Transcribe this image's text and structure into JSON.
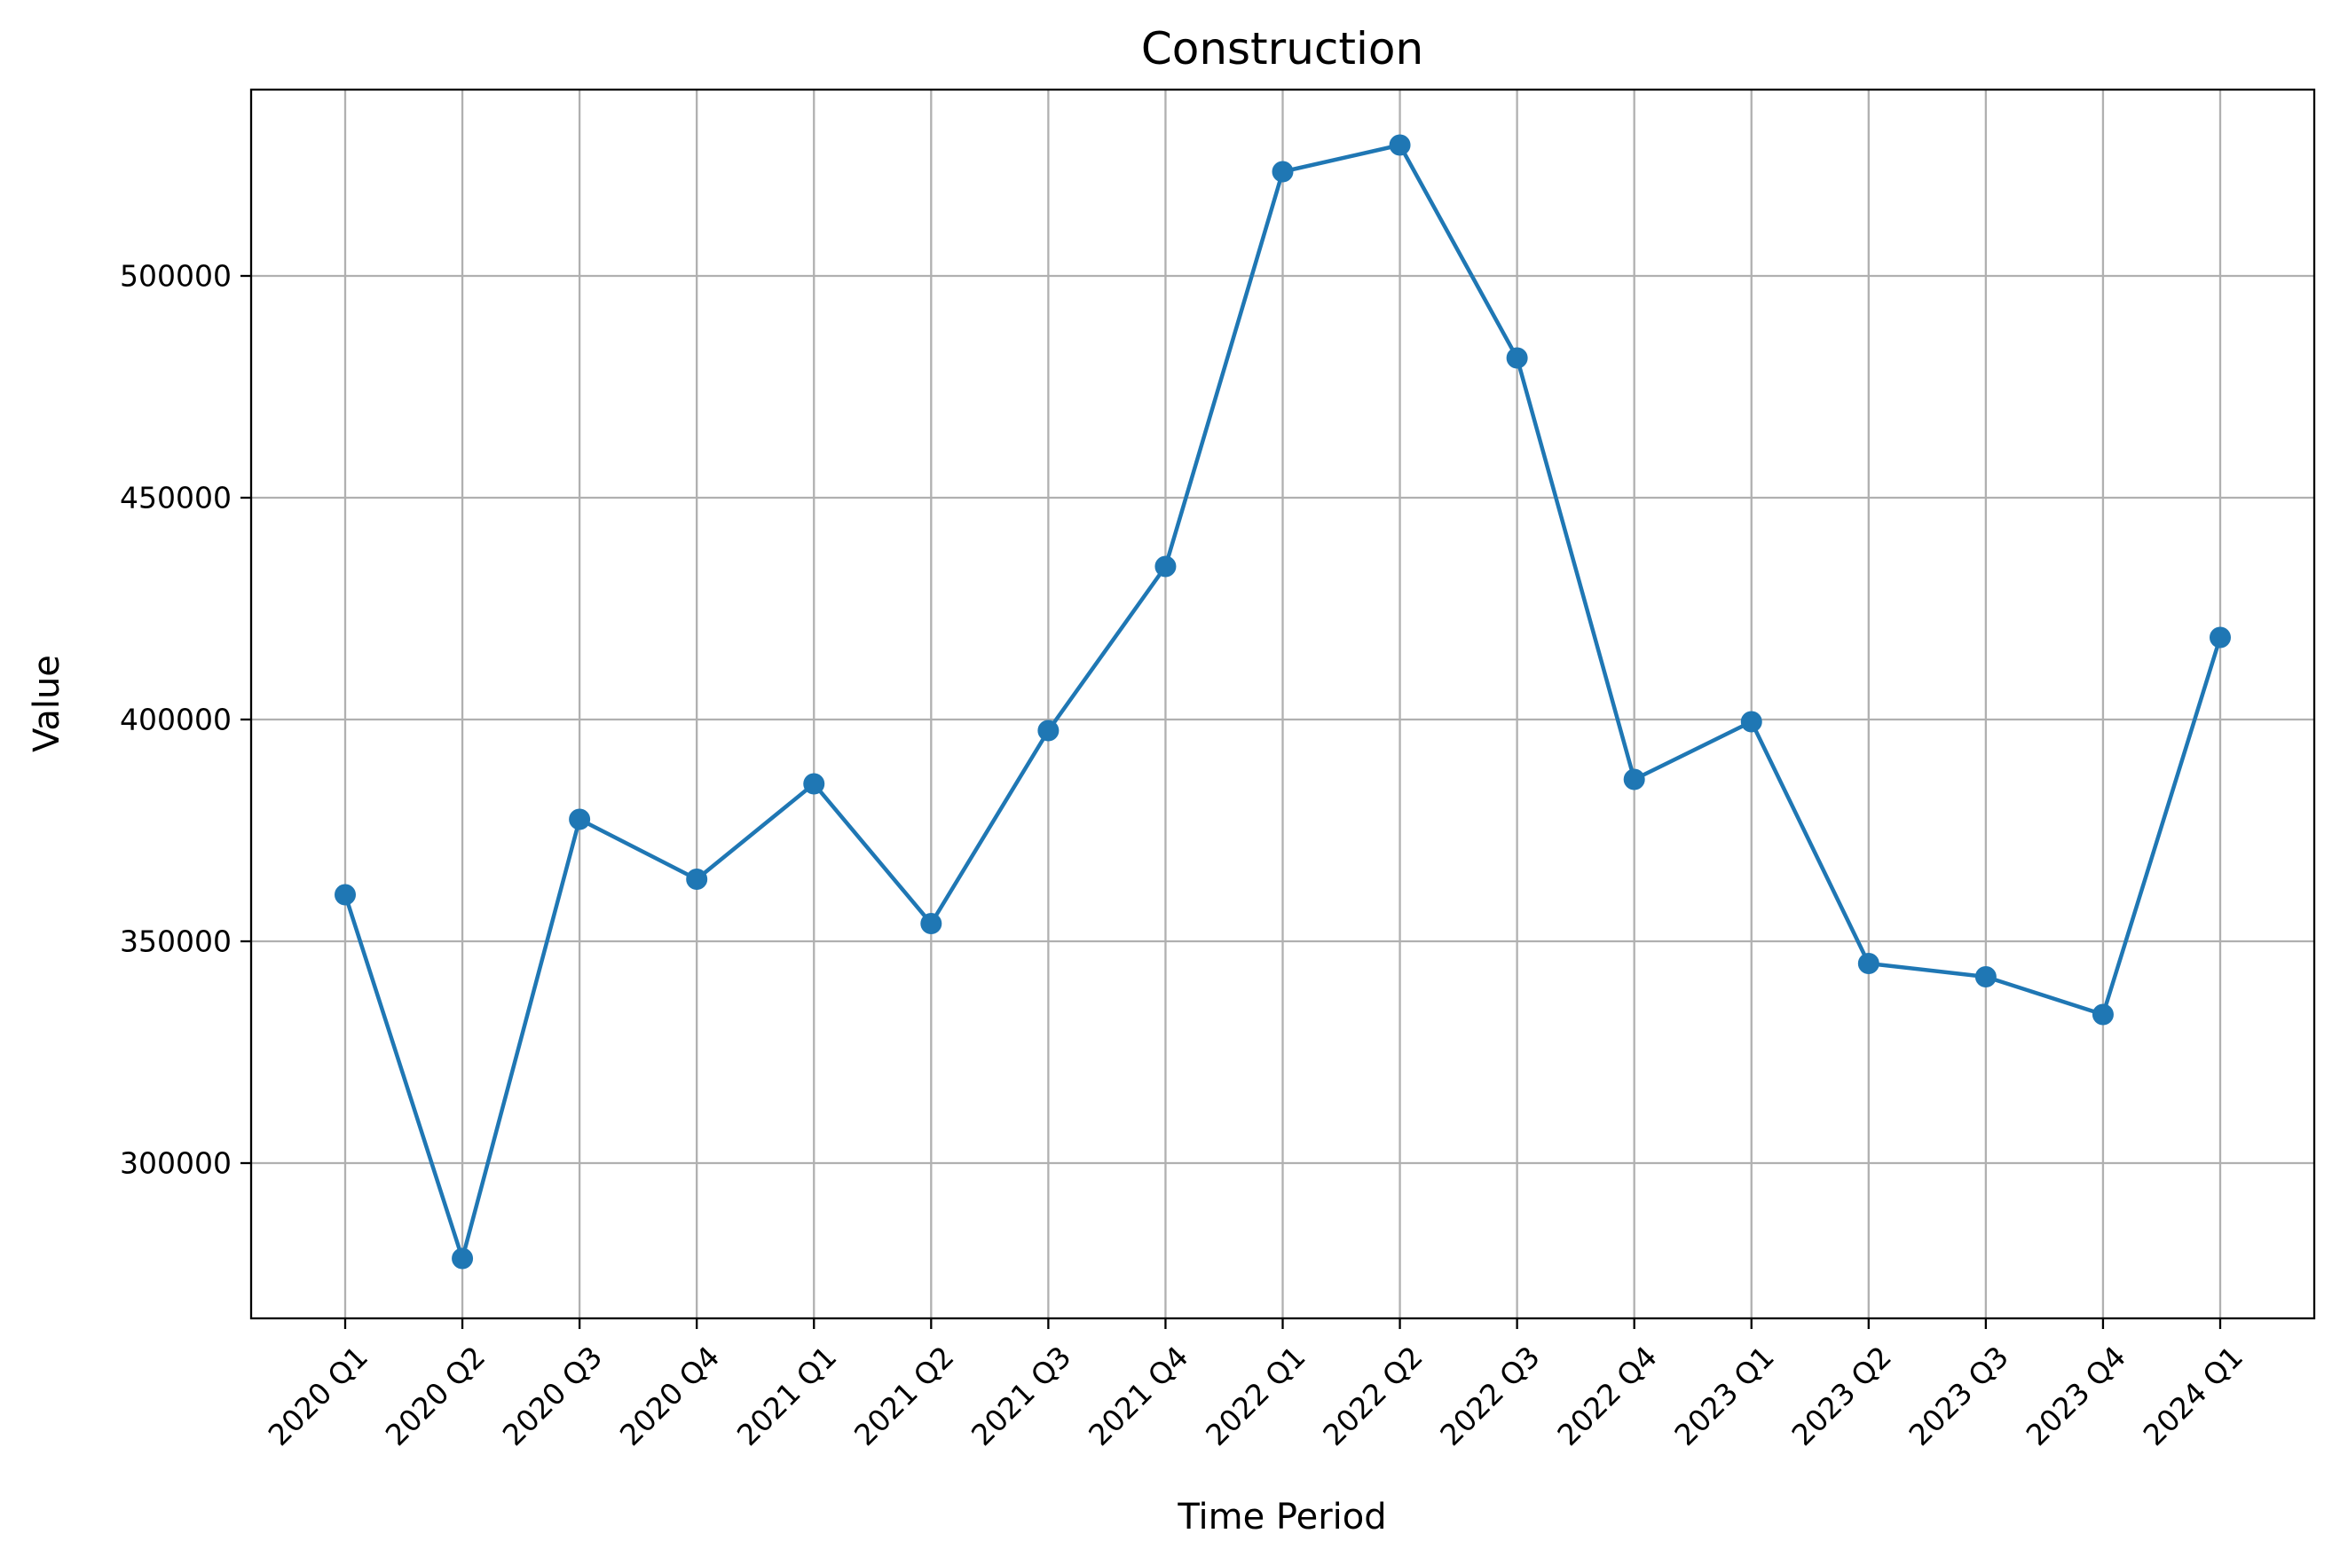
{
  "chart_data": {
    "type": "line",
    "title": "Construction",
    "xlabel": "Time Period",
    "ylabel": "Value",
    "categories": [
      "2020 Q1",
      "2020 Q2",
      "2020 Q3",
      "2020 Q4",
      "2021 Q1",
      "2021 Q2",
      "2021 Q3",
      "2021 Q4",
      "2022 Q1",
      "2022 Q2",
      "2022 Q3",
      "2022 Q4",
      "2023 Q1",
      "2023 Q2",
      "2023 Q3",
      "2023 Q4",
      "2024 Q1"
    ],
    "series": [
      {
        "values": [
          360500,
          278500,
          377500,
          364000,
          385500,
          354000,
          397500,
          434500,
          523500,
          529500,
          481500,
          386500,
          399500,
          345000,
          342000,
          333500,
          418500
        ],
        "color": "#1f77b4",
        "marker": "circle"
      }
    ],
    "yticks": [
      300000,
      350000,
      400000,
      450000,
      500000
    ],
    "ytick_labels": [
      "300000",
      "350000",
      "400000",
      "450000",
      "500000"
    ],
    "ylim": [
      265000,
      542000
    ],
    "grid": true,
    "legend": "none"
  }
}
